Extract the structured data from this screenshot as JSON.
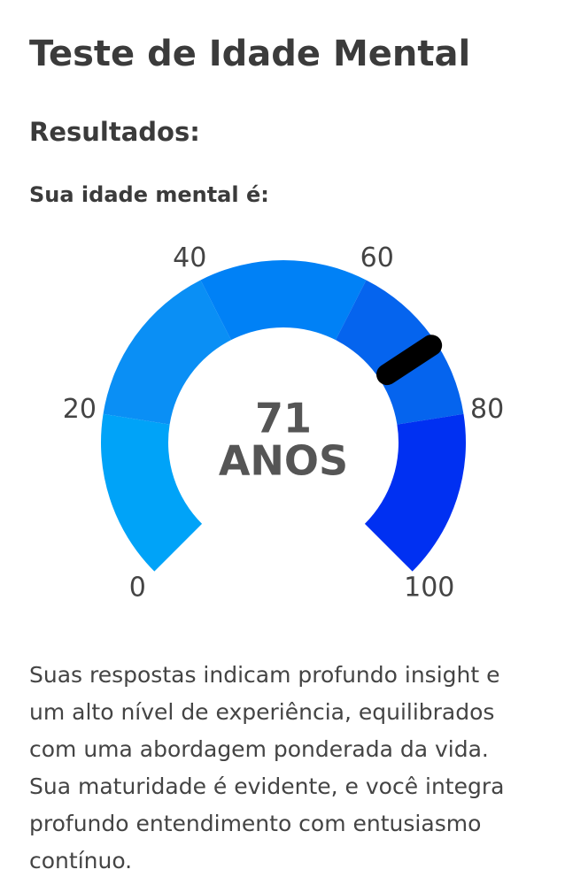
{
  "title": "Teste de Idade Mental",
  "subtitle": "Resultados:",
  "label": "Sua idade mental é:",
  "gauge": {
    "value": 71,
    "unit": "ANOS",
    "lim": [
      0,
      100
    ],
    "ticks": [
      0,
      20,
      40,
      60,
      80,
      100
    ],
    "bands": [
      {
        "from": 0,
        "to": 20,
        "color": "#00a3f8"
      },
      {
        "from": 20,
        "to": 40,
        "color": "#0a8ff5"
      },
      {
        "from": 40,
        "to": 60,
        "color": "#0081f6"
      },
      {
        "from": 60,
        "to": 80,
        "color": "#0564ee"
      },
      {
        "from": 80,
        "to": 100,
        "color": "#0030f2"
      }
    ],
    "needle_color": "#000000"
  },
  "description": [
    "Suas respostas indicam profundo insight e",
    "um alto nível de experiência, equilibrados",
    "com uma abordagem ponderada da vida.",
    "Sua maturidade é evidente, e você integra",
    "profundo entendimento com entusiasmo",
    "contínuo."
  ]
}
